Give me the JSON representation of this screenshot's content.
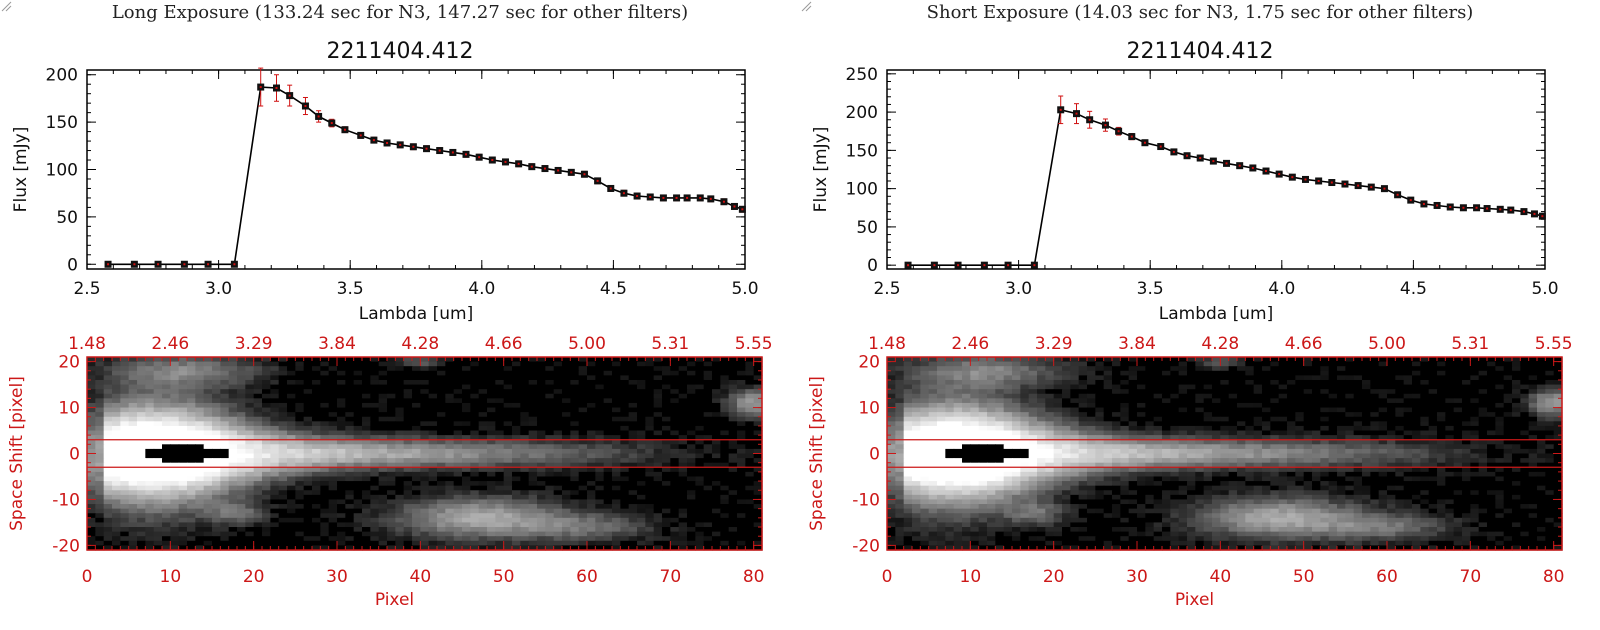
{
  "panels": [
    {
      "id": "long",
      "title": "Long Exposure (133.24 sec for N3, 147.27 sec for other filters)",
      "spectrum": {
        "type": "line",
        "title": "2211404.412",
        "xlabel": "Lambda [um]",
        "ylabel": "Flux [mJy]",
        "xlim": [
          2.5,
          5.0
        ],
        "ylim": [
          -5,
          205
        ],
        "xticks": [
          "2.5",
          "3.0",
          "3.5",
          "4.0",
          "4.5",
          "5.0"
        ],
        "yticks": [
          "0",
          "50",
          "100",
          "150",
          "200"
        ],
        "x": [
          2.58,
          2.68,
          2.77,
          2.87,
          2.96,
          3.06,
          3.16,
          3.22,
          3.27,
          3.33,
          3.38,
          3.43,
          3.48,
          3.54,
          3.59,
          3.64,
          3.69,
          3.74,
          3.79,
          3.84,
          3.89,
          3.94,
          3.99,
          4.04,
          4.09,
          4.14,
          4.19,
          4.24,
          4.29,
          4.34,
          4.39,
          4.44,
          4.49,
          4.54,
          4.59,
          4.64,
          4.69,
          4.74,
          4.78,
          4.83,
          4.87,
          4.92,
          4.96,
          4.99
        ],
        "y": [
          0,
          0,
          0,
          0,
          0,
          0,
          187,
          186,
          178,
          167,
          156,
          149,
          142,
          136,
          131,
          128,
          126,
          124,
          122,
          120,
          118,
          116,
          113,
          110,
          108,
          106,
          103,
          101,
          99,
          97,
          95,
          88,
          80,
          75,
          72,
          71,
          70,
          70,
          70,
          70,
          69,
          66,
          61,
          58
        ],
        "err": [
          0,
          0,
          0,
          0,
          0,
          0,
          20,
          14,
          11,
          9,
          6,
          4,
          3,
          3,
          3,
          3,
          3,
          3,
          3,
          3,
          3,
          3,
          3,
          3,
          3,
          3,
          3,
          3,
          3,
          3,
          3,
          3,
          3,
          3,
          3,
          3,
          3,
          3,
          3,
          3,
          3,
          3,
          3,
          3
        ]
      },
      "image": {
        "type": "heatmap",
        "xlabel": "Pixel",
        "ylabel": "Space Shift [pixel]",
        "xlim": [
          0,
          81
        ],
        "ylim": [
          -21,
          21
        ],
        "xticks": [
          "0",
          "10",
          "20",
          "30",
          "40",
          "50",
          "60",
          "70",
          "80"
        ],
        "yticks": [
          "-20",
          "-10",
          "0",
          "10",
          "20"
        ],
        "top_ticks": [
          "1.48",
          "2.46",
          "3.29",
          "3.84",
          "4.28",
          "4.66",
          "5.00",
          "5.31",
          "5.55"
        ],
        "aperture_rows": [
          -3,
          3
        ]
      }
    },
    {
      "id": "short",
      "title": "Short Exposure (14.03 sec for N3, 1.75 sec for other filters)",
      "spectrum": {
        "type": "line",
        "title": "2211404.412",
        "xlabel": "Lambda [um]",
        "ylabel": "Flux [mJy]",
        "xlim": [
          2.5,
          5.0
        ],
        "ylim": [
          -5,
          255
        ],
        "xticks": [
          "2.5",
          "3.0",
          "3.5",
          "4.0",
          "4.5",
          "5.0"
        ],
        "yticks": [
          "0",
          "50",
          "100",
          "150",
          "200",
          "250"
        ],
        "x": [
          2.58,
          2.68,
          2.77,
          2.87,
          2.96,
          3.06,
          3.16,
          3.22,
          3.27,
          3.33,
          3.38,
          3.43,
          3.48,
          3.54,
          3.59,
          3.64,
          3.69,
          3.74,
          3.79,
          3.84,
          3.89,
          3.94,
          3.99,
          4.04,
          4.09,
          4.14,
          4.19,
          4.24,
          4.29,
          4.34,
          4.39,
          4.44,
          4.49,
          4.54,
          4.59,
          4.64,
          4.69,
          4.74,
          4.78,
          4.83,
          4.87,
          4.92,
          4.96,
          4.99
        ],
        "y": [
          0,
          0,
          0,
          0,
          0,
          0,
          203,
          198,
          190,
          183,
          175,
          168,
          160,
          155,
          148,
          143,
          140,
          136,
          133,
          130,
          127,
          123,
          119,
          115,
          112,
          110,
          108,
          106,
          104,
          102,
          100,
          92,
          85,
          80,
          78,
          76,
          75,
          75,
          74,
          73,
          72,
          70,
          67,
          64
        ],
        "err": [
          0,
          0,
          0,
          0,
          0,
          0,
          18,
          13,
          11,
          8,
          5,
          4,
          3,
          3,
          3,
          3,
          3,
          3,
          3,
          3,
          3,
          3,
          3,
          3,
          3,
          3,
          3,
          3,
          3,
          3,
          3,
          3,
          3,
          3,
          3,
          3,
          3,
          3,
          3,
          3,
          3,
          3,
          3,
          3
        ]
      },
      "image": {
        "type": "heatmap",
        "xlabel": "Pixel",
        "ylabel": "Space Shift [pixel]",
        "xlim": [
          0,
          81
        ],
        "ylim": [
          -21,
          21
        ],
        "xticks": [
          "0",
          "10",
          "20",
          "30",
          "40",
          "50",
          "60",
          "70",
          "80"
        ],
        "yticks": [
          "-20",
          "-10",
          "0",
          "10",
          "20"
        ],
        "top_ticks": [
          "1.48",
          "2.46",
          "3.29",
          "3.84",
          "4.28",
          "4.66",
          "5.00",
          "5.31",
          "5.55"
        ],
        "aperture_rows": [
          -3,
          3
        ]
      }
    }
  ],
  "colors": {
    "axis": "#000000",
    "error": "#d01010",
    "image_axis": "#cc1818",
    "marker": "#111111"
  }
}
